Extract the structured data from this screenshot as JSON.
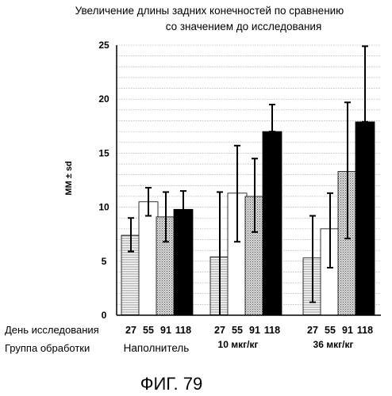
{
  "chart_data": {
    "type": "bar",
    "title_lines": [
      "Увеличение длины задних конечностей по сравнению",
      "со значением до исследования"
    ],
    "ylabel": "ММ ± sd",
    "ylim": [
      0,
      25
    ],
    "yticks": [
      0,
      5,
      10,
      15,
      20,
      25
    ],
    "x_row_label": "День исследования",
    "group_row_label": "Группа обработки",
    "groups": [
      {
        "label": "Наполнитель",
        "days": [
          "27",
          "55",
          "91",
          "118"
        ],
        "values": [
          7.4,
          10.5,
          9.1,
          9.8
        ],
        "sd_low": [
          5.9,
          9.2,
          6.8,
          8.1
        ],
        "sd_high": [
          9.0,
          11.8,
          11.4,
          11.5
        ]
      },
      {
        "label": "10 мкг/кг",
        "days": [
          "27",
          "55",
          "91",
          "118"
        ],
        "values": [
          5.4,
          11.3,
          11.0,
          17.0
        ],
        "sd_low": [
          0.0,
          6.8,
          7.7,
          17.0
        ],
        "sd_high": [
          11.4,
          15.7,
          14.5,
          19.5
        ]
      },
      {
        "label": "36 мкг/кг",
        "days": [
          "27",
          "55",
          "91",
          "118"
        ],
        "values": [
          5.3,
          8.0,
          13.3,
          17.9
        ],
        "sd_low": [
          1.2,
          4.4,
          7.1,
          17.9
        ],
        "sd_high": [
          9.2,
          11.3,
          19.7,
          24.9
        ]
      }
    ],
    "series_styles": [
      {
        "day": "27",
        "fill": "hlines",
        "color": "#8c8c8c"
      },
      {
        "day": "55",
        "fill": "white",
        "color": "#ffffff"
      },
      {
        "day": "91",
        "fill": "dots",
        "color": "#7a7a7a"
      },
      {
        "day": "118",
        "fill": "solid",
        "color": "#000000"
      }
    ],
    "grid": "horizontal dashed"
  },
  "figure_caption": "ФИГ. 79"
}
